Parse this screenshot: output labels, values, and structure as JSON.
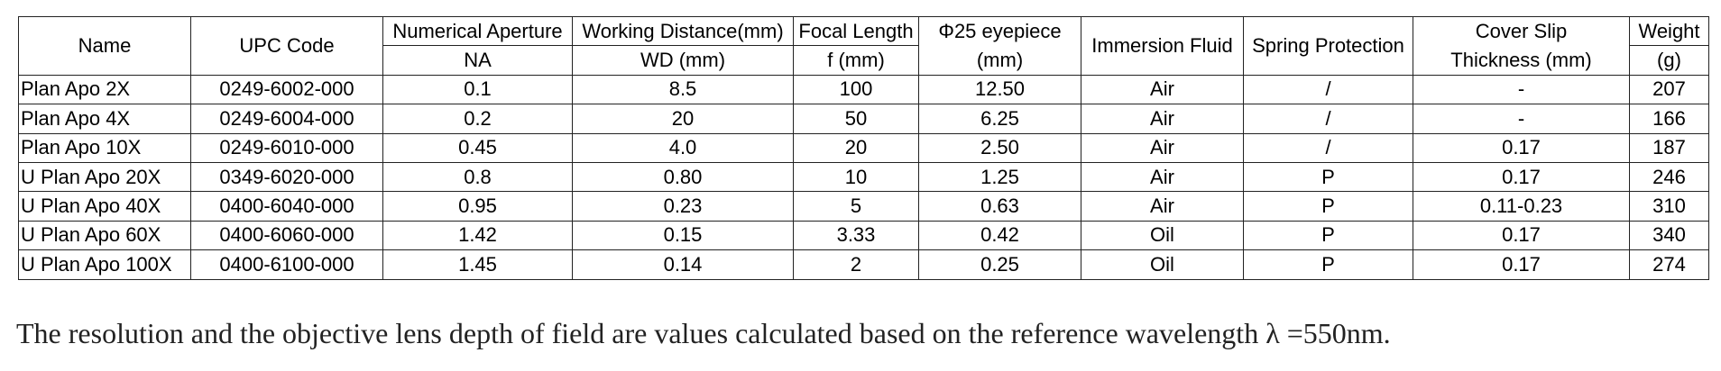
{
  "table": {
    "headers": {
      "name": "Name",
      "upc": "UPC Code",
      "na_top": "Numerical Aperture",
      "na_sub": "NA",
      "wd_top": "Working Distance(mm)",
      "wd_sub": "WD (mm)",
      "fl_top": "Focal Length",
      "fl_sub": "f (mm)",
      "eye_top": "Φ25 eyepiece",
      "eye_sub": "(mm)",
      "immersion": "Immersion Fluid",
      "spring": "Spring Protection",
      "cover_top": "Cover Slip",
      "cover_sub": "Thickness (mm)",
      "weight_top": "Weight",
      "weight_sub": "(g)"
    },
    "rows": [
      {
        "name": "Plan Apo 2X",
        "upc": "0249-6002-000",
        "na": "0.1",
        "wd": "8.5",
        "fl": "100",
        "eye": "12.50",
        "immersion": "Air",
        "spring": "/",
        "cover": "-",
        "weight": "207"
      },
      {
        "name": "Plan Apo 4X",
        "upc": "0249-6004-000",
        "na": "0.2",
        "wd": "20",
        "fl": "50",
        "eye": "6.25",
        "immersion": "Air",
        "spring": "/",
        "cover": "-",
        "weight": "166"
      },
      {
        "name": "Plan Apo 10X",
        "upc": "0249-6010-000",
        "na": "0.45",
        "wd": "4.0",
        "fl": "20",
        "eye": "2.50",
        "immersion": "Air",
        "spring": "/",
        "cover": "0.17",
        "weight": "187"
      },
      {
        "name": "U Plan Apo 20X",
        "upc": "0349-6020-000",
        "na": "0.8",
        "wd": "0.80",
        "fl": "10",
        "eye": "1.25",
        "immersion": "Air",
        "spring": "P",
        "cover": "0.17",
        "weight": "246"
      },
      {
        "name": "U Plan Apo 40X",
        "upc": "0400-6040-000",
        "na": "0.95",
        "wd": "0.23",
        "fl": "5",
        "eye": "0.63",
        "immersion": "Air",
        "spring": "P",
        "cover": "0.11-0.23",
        "weight": "310"
      },
      {
        "name": "U Plan Apo 60X",
        "upc": "0400-6060-000",
        "na": "1.42",
        "wd": "0.15",
        "fl": "3.33",
        "eye": "0.42",
        "immersion": "Oil",
        "spring": "P",
        "cover": "0.17",
        "weight": "340"
      },
      {
        "name": "U Plan Apo 100X",
        "upc": "0400-6100-000",
        "na": "1.45",
        "wd": "0.14",
        "fl": "2",
        "eye": "0.25",
        "immersion": "Oil",
        "spring": "P",
        "cover": "0.17",
        "weight": "274"
      }
    ]
  },
  "footnote": "The resolution and the objective lens depth of field are values calculated based on the reference wavelength  λ =550nm."
}
